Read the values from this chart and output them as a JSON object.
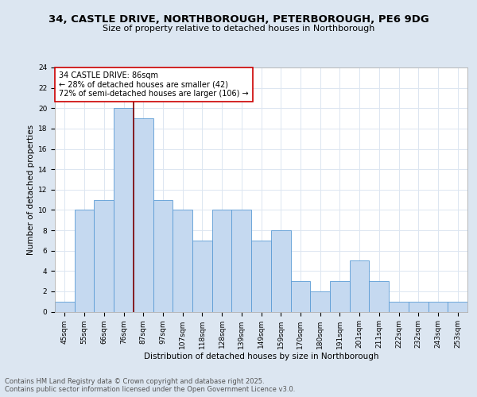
{
  "title": "34, CASTLE DRIVE, NORTHBOROUGH, PETERBOROUGH, PE6 9DG",
  "subtitle": "Size of property relative to detached houses in Northborough",
  "xlabel": "Distribution of detached houses by size in Northborough",
  "ylabel": "Number of detached properties",
  "categories": [
    "45sqm",
    "55sqm",
    "66sqm",
    "76sqm",
    "87sqm",
    "97sqm",
    "107sqm",
    "118sqm",
    "128sqm",
    "139sqm",
    "149sqm",
    "159sqm",
    "170sqm",
    "180sqm",
    "191sqm",
    "201sqm",
    "211sqm",
    "222sqm",
    "232sqm",
    "243sqm",
    "253sqm"
  ],
  "values": [
    1,
    10,
    11,
    20,
    19,
    11,
    10,
    7,
    10,
    10,
    7,
    8,
    3,
    2,
    3,
    5,
    3,
    1,
    1,
    1,
    1
  ],
  "bar_color": "#c5d9f0",
  "bar_edge_color": "#5b9bd5",
  "vline_index": 4,
  "annotation_title": "34 CASTLE DRIVE: 86sqm",
  "annotation_line1": "← 28% of detached houses are smaller (42)",
  "annotation_line2": "72% of semi-detached houses are larger (106) →",
  "annotation_box_color": "#ffffff",
  "annotation_box_edge": "#cc0000",
  "vline_color": "#800000",
  "grid_color": "#dce6f1",
  "background_color": "#dce6f1",
  "plot_background": "#ffffff",
  "ylim": [
    0,
    24
  ],
  "yticks": [
    0,
    2,
    4,
    6,
    8,
    10,
    12,
    14,
    16,
    18,
    20,
    22,
    24
  ],
  "footer": "Contains HM Land Registry data © Crown copyright and database right 2025.\nContains public sector information licensed under the Open Government Licence v3.0.",
  "title_fontsize": 9.5,
  "subtitle_fontsize": 8,
  "axis_label_fontsize": 7.5,
  "tick_fontsize": 6.5,
  "annotation_fontsize": 7,
  "footer_fontsize": 6
}
